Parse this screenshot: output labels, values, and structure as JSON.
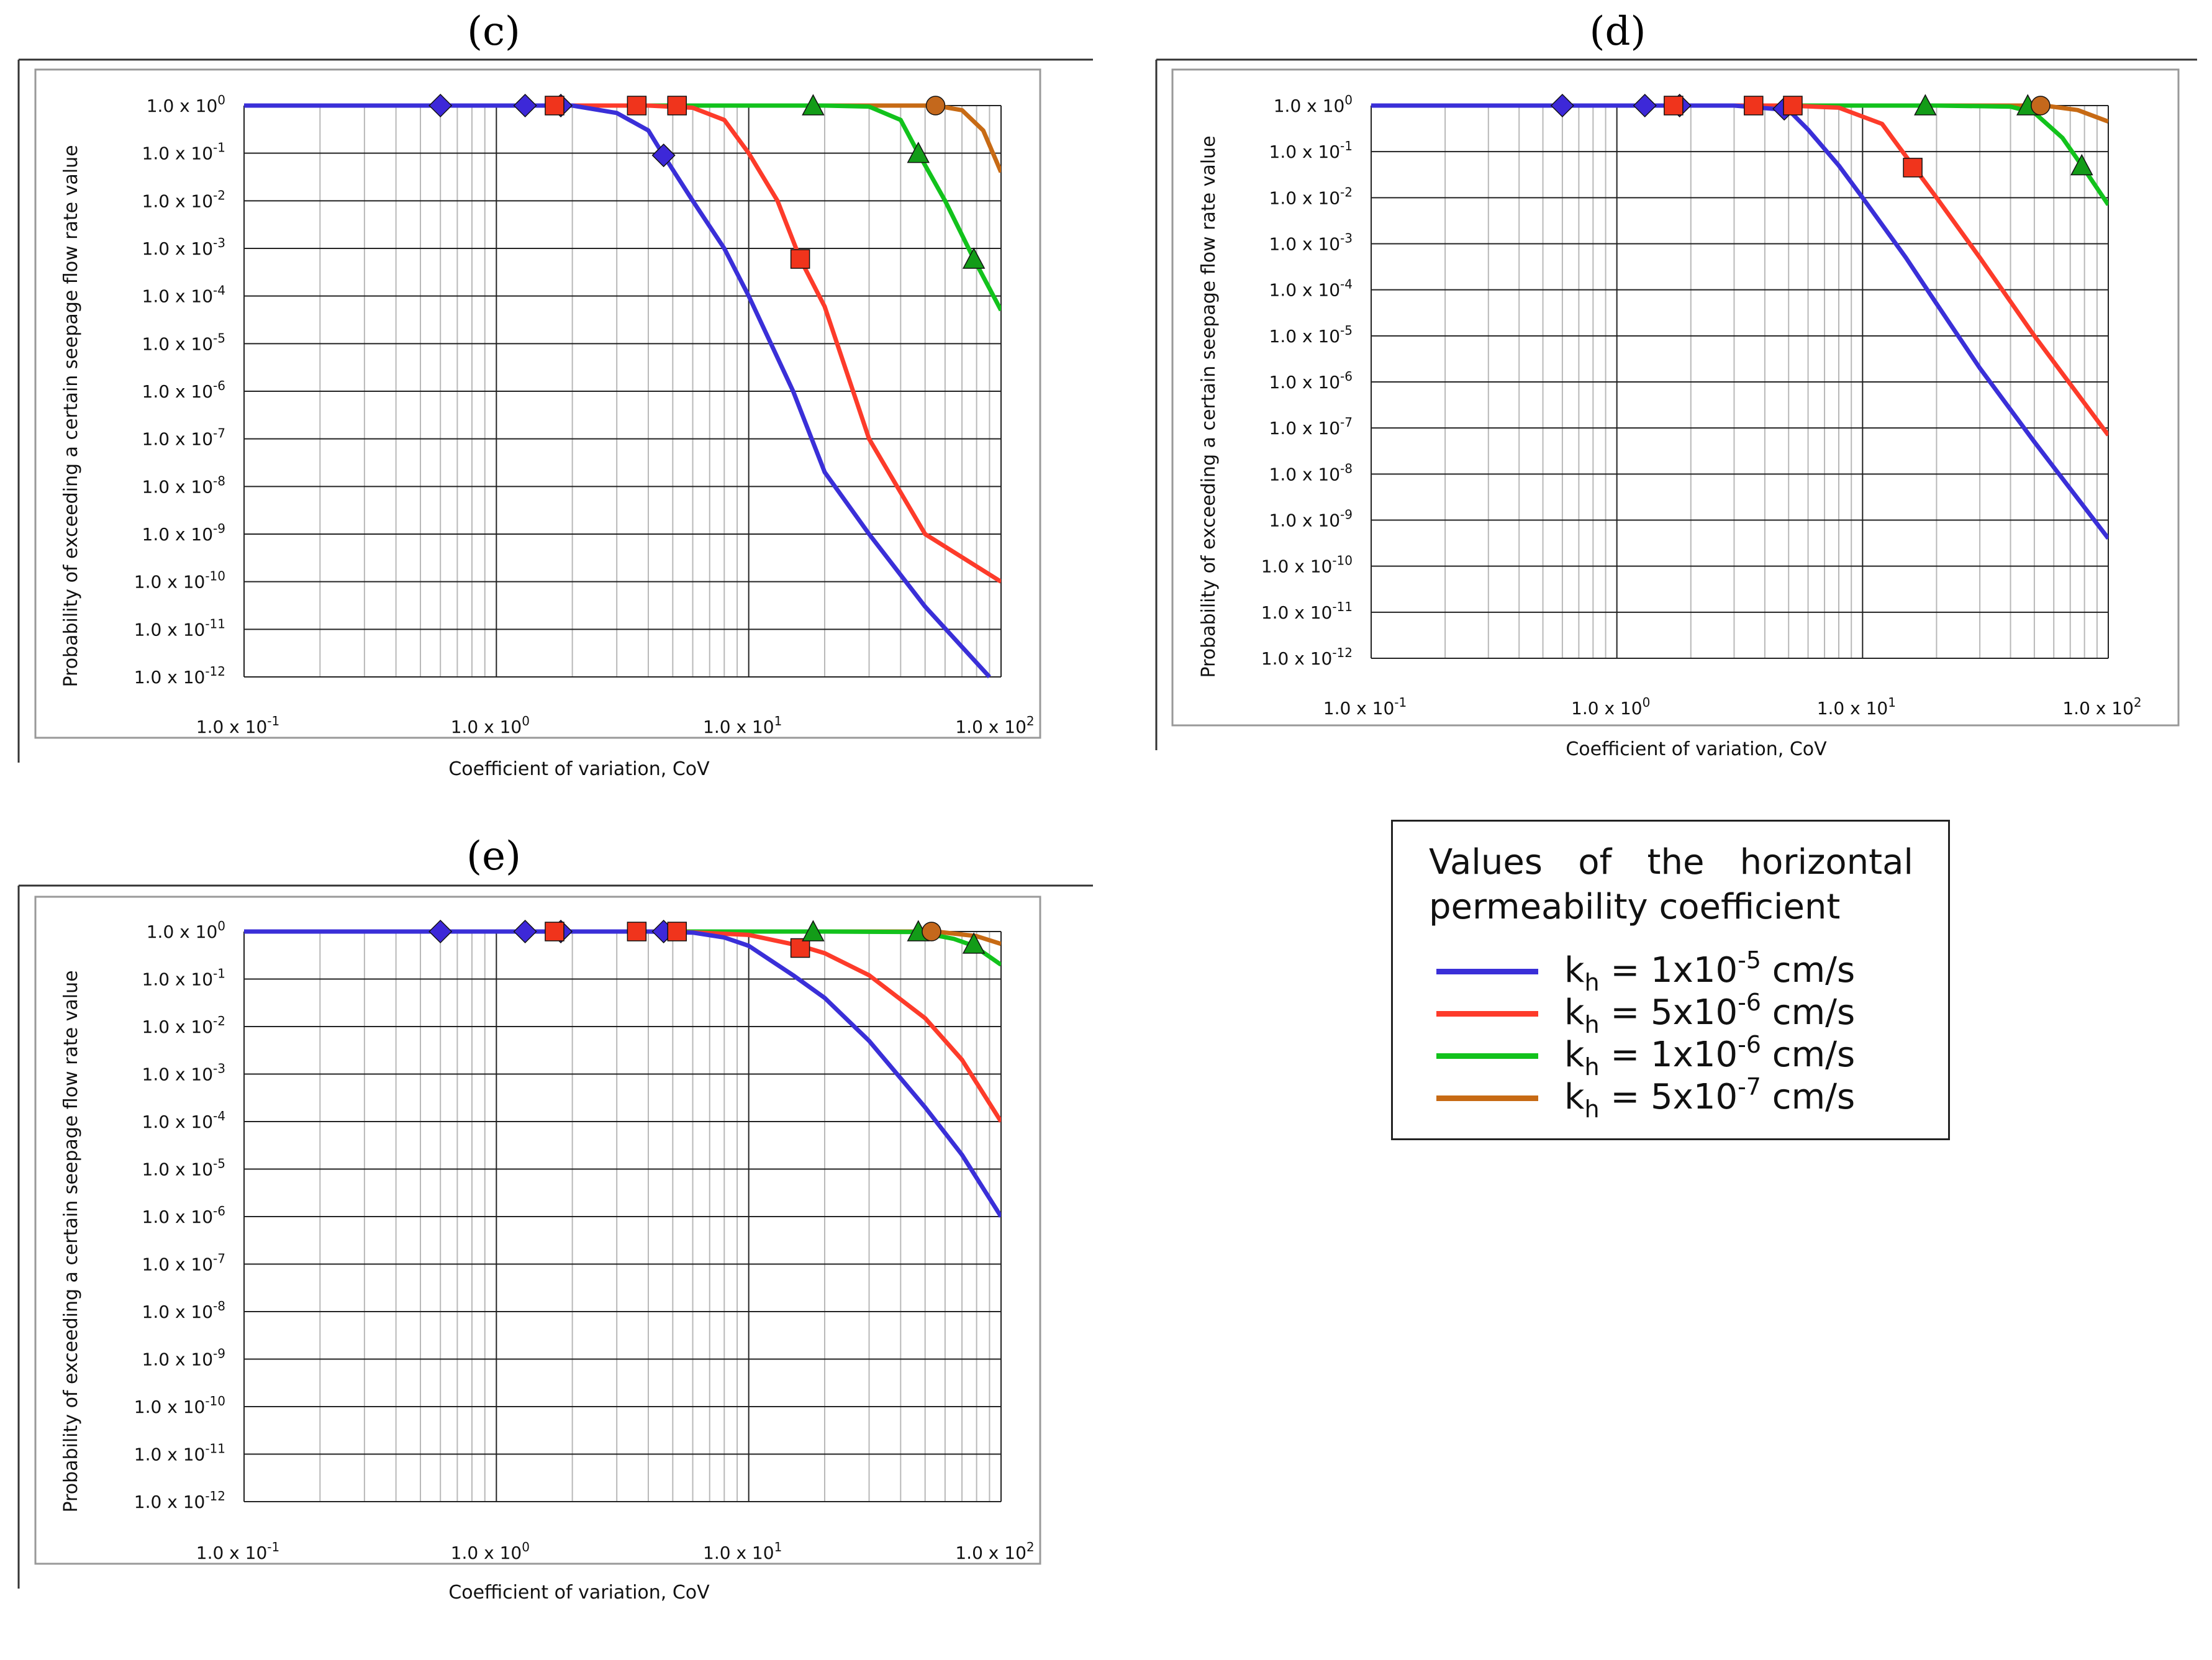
{
  "colors": {
    "blue": "#3a2fd8",
    "red": "#fd3b2a",
    "green": "#12c21c",
    "orange": "#c76a14",
    "marker_blue": "#3d28d8",
    "marker_red": "#f0341c",
    "marker_green": "#139c18",
    "marker_orange": "#c4681c"
  },
  "legend": {
    "title": "Values of the horizontal permeability coefficient",
    "items": [
      {
        "prefix": "k",
        "sub": "h",
        "middle": " = 1x10",
        "sup": "-5",
        "suffix": " cm/s",
        "color": "#3a2fd8"
      },
      {
        "prefix": "k",
        "sub": "h",
        "middle": " = 5x10",
        "sup": "-6",
        "suffix": " cm/s",
        "color": "#fd3b2a"
      },
      {
        "prefix": "k",
        "sub": "h",
        "middle": " = 1x10",
        "sup": "-6",
        "suffix": " cm/s",
        "color": "#12c21c"
      },
      {
        "prefix": "k",
        "sub": "h",
        "middle": " = 5x10",
        "sup": "-7",
        "suffix": " cm/s",
        "color": "#c76a14"
      }
    ]
  },
  "chart_data": [
    {
      "panel": "(c)",
      "letter": "c",
      "type": "line",
      "xscale": "log",
      "yscale": "log",
      "xlim": [
        0.1,
        100
      ],
      "ylim": [
        1e-12,
        1
      ],
      "xlabel": "Coefficient of variation, CoV",
      "ylabel": "Probability of exceeding a certain seepage flow rate value",
      "x_ticks": [
        {
          "mant": "1.0 x 10",
          "exp": "-1"
        },
        {
          "mant": "1.0 x 10",
          "exp": "0"
        },
        {
          "mant": "1.0 x 10",
          "exp": "1"
        },
        {
          "mant": "1.0 x 10",
          "exp": "2"
        }
      ],
      "y_ticks": [
        {
          "mant": "1.0 x 10",
          "exp": "0"
        },
        {
          "mant": "1.0 x 10",
          "exp": "-1"
        },
        {
          "mant": "1.0 x 10",
          "exp": "-2"
        },
        {
          "mant": "1.0 x 10",
          "exp": "-3"
        },
        {
          "mant": "1.0 x 10",
          "exp": "-4"
        },
        {
          "mant": "1.0 x 10",
          "exp": "-5"
        },
        {
          "mant": "1.0 x 10",
          "exp": "-6"
        },
        {
          "mant": "1.0 x 10",
          "exp": "-7"
        },
        {
          "mant": "1.0 x 10",
          "exp": "-8"
        },
        {
          "mant": "1.0 x 10",
          "exp": "-9"
        },
        {
          "mant": "1.0 x 10",
          "exp": "-10"
        },
        {
          "mant": "1.0 x 10",
          "exp": "-11"
        },
        {
          "mant": "1.0 x 10",
          "exp": "-12"
        }
      ],
      "series": [
        {
          "name": "kh = 1x10^-5 cm/s",
          "color": "#3a2fd8",
          "x": [
            0.1,
            1.0,
            2.0,
            3.0,
            4.0,
            4.6,
            6.0,
            8.0,
            10.0,
            15.0,
            20.0,
            30.0,
            50.0,
            90.0
          ],
          "y": [
            1,
            1,
            1,
            0.7,
            0.3,
            0.09,
            0.01,
            0.001,
            0.0001,
            1e-06,
            2e-08,
            1e-09,
            3e-11,
            1e-12
          ],
          "markers": {
            "shape": "diamond",
            "x": [
              0.6,
              1.3,
              1.8,
              4.6
            ],
            "y": [
              1,
              1,
              1,
              0.09
            ]
          }
        },
        {
          "name": "kh = 5x10^-6 cm/s",
          "color": "#fd3b2a",
          "x": [
            0.1,
            1.0,
            4.0,
            6.0,
            8.0,
            10.0,
            13.0,
            16.0,
            20.0,
            30.0,
            50.0,
            100.0
          ],
          "y": [
            1,
            1,
            1,
            0.9,
            0.5,
            0.1,
            0.01,
            0.0006,
            6e-05,
            1e-07,
            1e-09,
            1e-10
          ],
          "markers": {
            "shape": "square",
            "x": [
              1.7,
              3.6,
              5.2,
              16.0
            ],
            "y": [
              1,
              1,
              1,
              0.0006
            ]
          }
        },
        {
          "name": "kh = 1x10^-6 cm/s",
          "color": "#12c21c",
          "x": [
            0.1,
            5.0,
            20.0,
            30.0,
            40.0,
            47.0,
            60.0,
            78.0,
            100.0
          ],
          "y": [
            1,
            1,
            1,
            0.95,
            0.5,
            0.1,
            0.01,
            0.0006,
            5e-05
          ],
          "markers": {
            "shape": "triangle",
            "x": [
              18.0,
              47.0,
              78.0
            ],
            "y": [
              1,
              0.1,
              0.0006
            ]
          }
        },
        {
          "name": "kh = 5x10^-7 cm/s",
          "color": "#c76a14",
          "x": [
            0.1,
            20.0,
            55.0,
            70.0,
            85.0,
            100.0
          ],
          "y": [
            1,
            1,
            1,
            0.8,
            0.3,
            0.04
          ],
          "markers": {
            "shape": "circle",
            "x": [
              55.0
            ],
            "y": [
              1
            ]
          }
        }
      ]
    },
    {
      "panel": "(d)",
      "letter": "d",
      "type": "line",
      "xscale": "log",
      "yscale": "log",
      "xlim": [
        0.1,
        100
      ],
      "ylim": [
        1e-12,
        1
      ],
      "xlabel": "Coefficient of variation, CoV",
      "ylabel": "Probability of exceeding a certain seepage flow rate value",
      "x_ticks": [
        {
          "mant": "1.0 x 10",
          "exp": "-1"
        },
        {
          "mant": "1.0 x 10",
          "exp": "0"
        },
        {
          "mant": "1.0 x 10",
          "exp": "1"
        },
        {
          "mant": "1.0 x 10",
          "exp": "2"
        }
      ],
      "y_ticks": [
        {
          "mant": "1.0 x 10",
          "exp": "0"
        },
        {
          "mant": "1.0 x 10",
          "exp": "-1"
        },
        {
          "mant": "1.0 x 10",
          "exp": "-2"
        },
        {
          "mant": "1.0 x 10",
          "exp": "-3"
        },
        {
          "mant": "1.0 x 10",
          "exp": "-4"
        },
        {
          "mant": "1.0 x 10",
          "exp": "-5"
        },
        {
          "mant": "1.0 x 10",
          "exp": "-6"
        },
        {
          "mant": "1.0 x 10",
          "exp": "-7"
        },
        {
          "mant": "1.0 x 10",
          "exp": "-8"
        },
        {
          "mant": "1.0 x 10",
          "exp": "-9"
        },
        {
          "mant": "1.0 x 10",
          "exp": "-10"
        },
        {
          "mant": "1.0 x 10",
          "exp": "-11"
        },
        {
          "mant": "1.0 x 10",
          "exp": "-12"
        }
      ],
      "series": [
        {
          "name": "kh = 1x10^-5 cm/s",
          "color": "#3a2fd8",
          "x": [
            0.1,
            1.0,
            3.0,
            5.0,
            6.0,
            8.0,
            10.0,
            15.0,
            20.0,
            30.0,
            50.0,
            100.0
          ],
          "y": [
            1,
            1,
            1,
            0.8,
            0.3,
            0.05,
            0.01,
            0.0005,
            5e-05,
            2e-06,
            5e-08,
            4e-10
          ],
          "markers": {
            "shape": "diamond",
            "x": [
              0.6,
              1.3,
              1.8,
              4.8
            ],
            "y": [
              1,
              1,
              1,
              0.85
            ]
          }
        },
        {
          "name": "kh = 5x10^-6 cm/s",
          "color": "#fd3b2a",
          "x": [
            0.1,
            1.0,
            5.0,
            8.0,
            12.0,
            16.0,
            20.0,
            30.0,
            50.0,
            100.0
          ],
          "y": [
            1,
            1,
            1,
            0.9,
            0.4,
            0.05,
            0.01,
            0.0005,
            1e-05,
            7e-08
          ],
          "markers": {
            "shape": "square",
            "x": [
              1.7,
              3.6,
              5.2,
              16.0
            ],
            "y": [
              1,
              1,
              1,
              0.045
            ]
          }
        },
        {
          "name": "kh = 1x10^-6 cm/s",
          "color": "#12c21c",
          "x": [
            0.1,
            20.0,
            40.0,
            50.0,
            65.0,
            78.0,
            100.0
          ],
          "y": [
            1,
            1,
            0.95,
            0.7,
            0.2,
            0.05,
            0.007
          ],
          "markers": {
            "shape": "triangle",
            "x": [
              18.0,
              47.0,
              78.0
            ],
            "y": [
              1,
              1,
              0.05
            ]
          }
        },
        {
          "name": "kh = 5x10^-7 cm/s",
          "color": "#c76a14",
          "x": [
            0.1,
            20.0,
            55.0,
            75.0,
            100.0
          ],
          "y": [
            1,
            1,
            1,
            0.8,
            0.45
          ],
          "markers": {
            "shape": "circle",
            "x": [
              53.0
            ],
            "y": [
              1
            ]
          }
        }
      ]
    },
    {
      "panel": "(e)",
      "letter": "e",
      "type": "line",
      "xscale": "log",
      "yscale": "log",
      "xlim": [
        0.1,
        100
      ],
      "ylim": [
        1e-12,
        1
      ],
      "xlabel": "Coefficient of variation, CoV",
      "ylabel": "Probability of exceeding a certain seepage flow rate value",
      "x_ticks": [
        {
          "mant": "1.0 x 10",
          "exp": "-1"
        },
        {
          "mant": "1.0 x 10",
          "exp": "0"
        },
        {
          "mant": "1.0 x 10",
          "exp": "1"
        },
        {
          "mant": "1.0 x 10",
          "exp": "2"
        }
      ],
      "y_ticks": [
        {
          "mant": "1.0 x 10",
          "exp": "0"
        },
        {
          "mant": "1.0 x 10",
          "exp": "-1"
        },
        {
          "mant": "1.0 x 10",
          "exp": "-2"
        },
        {
          "mant": "1.0 x 10",
          "exp": "-3"
        },
        {
          "mant": "1.0 x 10",
          "exp": "-4"
        },
        {
          "mant": "1.0 x 10",
          "exp": "-5"
        },
        {
          "mant": "1.0 x 10",
          "exp": "-6"
        },
        {
          "mant": "1.0 x 10",
          "exp": "-7"
        },
        {
          "mant": "1.0 x 10",
          "exp": "-8"
        },
        {
          "mant": "1.0 x 10",
          "exp": "-9"
        },
        {
          "mant": "1.0 x 10",
          "exp": "-10"
        },
        {
          "mant": "1.0 x 10",
          "exp": "-11"
        },
        {
          "mant": "1.0 x 10",
          "exp": "-12"
        }
      ],
      "series": [
        {
          "name": "kh = 1x10^-5 cm/s",
          "color": "#3a2fd8",
          "x": [
            0.1,
            1.0,
            4.0,
            6.0,
            8.0,
            10.0,
            15.0,
            20.0,
            30.0,
            50.0,
            70.0,
            100.0
          ],
          "y": [
            1,
            1,
            1,
            0.95,
            0.75,
            0.5,
            0.12,
            0.04,
            0.005,
            0.0002,
            2e-05,
            1e-06
          ],
          "markers": {
            "shape": "diamond",
            "x": [
              0.6,
              1.3,
              1.8,
              4.6
            ],
            "y": [
              1,
              1,
              1,
              1
            ]
          }
        },
        {
          "name": "kh = 5x10^-6 cm/s",
          "color": "#fd3b2a",
          "x": [
            0.1,
            1.0,
            5.0,
            10.0,
            16.0,
            20.0,
            30.0,
            50.0,
            70.0,
            100.0
          ],
          "y": [
            1,
            1,
            1,
            0.85,
            0.5,
            0.35,
            0.12,
            0.015,
            0.002,
            0.0001
          ],
          "markers": {
            "shape": "square",
            "x": [
              1.7,
              3.6,
              5.2,
              16.0
            ],
            "y": [
              1,
              1,
              1,
              0.45
            ]
          }
        },
        {
          "name": "kh = 1x10^-6 cm/s",
          "color": "#12c21c",
          "x": [
            0.1,
            20.0,
            47.0,
            65.0,
            78.0,
            100.0
          ],
          "y": [
            1,
            1,
            0.98,
            0.7,
            0.5,
            0.2
          ],
          "markers": {
            "shape": "triangle",
            "x": [
              18.0,
              47.0,
              78.0
            ],
            "y": [
              1,
              1,
              0.55
            ]
          }
        },
        {
          "name": "kh = 5x10^-7 cm/s",
          "color": "#c76a14",
          "x": [
            0.1,
            20.0,
            55.0,
            80.0,
            100.0
          ],
          "y": [
            1,
            1,
            1,
            0.8,
            0.55
          ],
          "markers": {
            "shape": "circle",
            "x": [
              53.0
            ],
            "y": [
              1
            ]
          }
        }
      ]
    }
  ]
}
